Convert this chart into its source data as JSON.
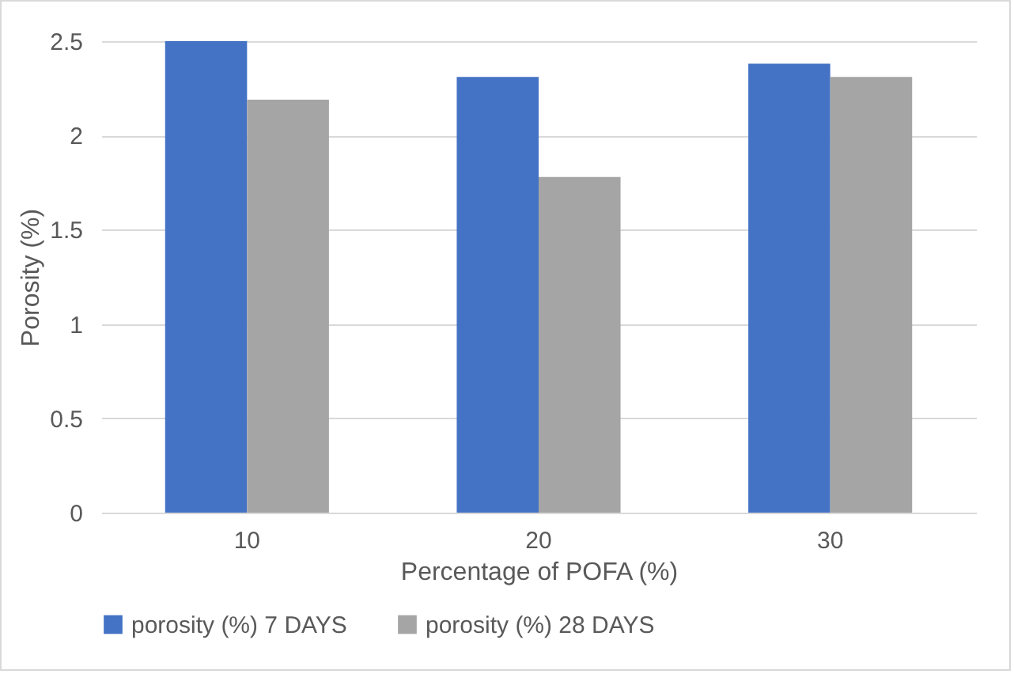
{
  "chart_data": {
    "type": "bar",
    "xlabel": "Percentage of POFA (%)",
    "ylabel": "Porosity (%)",
    "categories": [
      "10",
      "20",
      "30"
    ],
    "series": [
      {
        "name": "porosity (%) 7 DAYS",
        "color": "#4472c4",
        "values": [
          2.5,
          2.31,
          2.38
        ]
      },
      {
        "name": "porosity (%) 28 DAYS",
        "color": "#a5a5a5",
        "values": [
          2.19,
          1.78,
          2.31
        ]
      }
    ],
    "ylim": [
      0,
      2.5
    ],
    "yticks": [
      0,
      0.5,
      1,
      1.5,
      2,
      2.5
    ],
    "grid": "y",
    "legend": "bottom"
  }
}
